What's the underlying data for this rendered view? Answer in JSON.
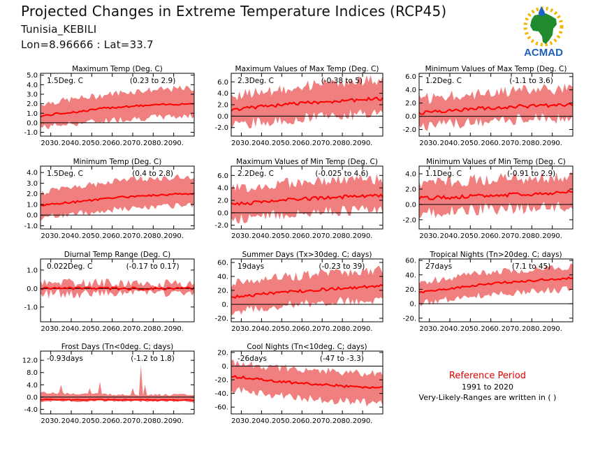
{
  "header": {
    "title": "Projected Changes in Extreme Temperature Indices (RCP45)",
    "location": "Tunisia_KEBILI",
    "coords": "Lon=8.96666 : Lat=33.7"
  },
  "logo": {
    "text": "ACMAD",
    "icon": "africa-map-sun-raindrop-logo"
  },
  "reference": {
    "title": "Reference Period",
    "years": "1991 to 2020",
    "note": "Very-Likely-Ranges are written in ( )"
  },
  "colors": {
    "band": "#f08080",
    "line": "#ff0000",
    "zero": "#000000"
  },
  "chart_data": [
    {
      "type": "area",
      "title": "Maximum Temp (Deg. C)",
      "summary": "1.5Deg. C",
      "range": "(0.23 to 2.9)",
      "ylim": [
        -1.4,
        5.2
      ],
      "yticks": [
        -1,
        0,
        1,
        2,
        3,
        4,
        5
      ],
      "ytick_labels": [
        "-1.0",
        "0.0",
        "1.0",
        "2.0",
        "3.0",
        "4.0",
        "5.0"
      ],
      "x": [
        2025,
        2035,
        2045,
        2055,
        2065,
        2075,
        2085,
        2095,
        2100
      ],
      "median": [
        0.7,
        1.0,
        1.2,
        1.5,
        1.7,
        1.8,
        1.9,
        2.0,
        2.0
      ],
      "lower": [
        -0.5,
        -0.2,
        0.0,
        0.2,
        0.4,
        0.5,
        0.6,
        0.7,
        0.7
      ],
      "upper": [
        2.0,
        2.3,
        2.6,
        2.9,
        3.2,
        3.4,
        3.5,
        3.6,
        3.6
      ],
      "noise": 0.35
    },
    {
      "type": "area",
      "title": "Maximum Values of Max Temp (Deg. C)",
      "summary": "2.3Deg. C",
      "range": "(-0.38 to 5)",
      "ylim": [
        -3.5,
        7.5
      ],
      "yticks": [
        -2,
        0,
        2,
        4,
        6
      ],
      "ytick_labels": [
        "-2.0",
        "0.0",
        "2.0",
        "4.0",
        "6.0"
      ],
      "x": [
        2025,
        2035,
        2045,
        2055,
        2065,
        2075,
        2085,
        2095,
        2100
      ],
      "median": [
        1.0,
        1.5,
        1.8,
        2.1,
        2.4,
        2.6,
        2.8,
        3.0,
        3.0
      ],
      "lower": [
        -1.5,
        -1.2,
        -0.9,
        -0.6,
        -0.3,
        0.0,
        0.2,
        0.4,
        0.4
      ],
      "upper": [
        3.5,
        4.0,
        4.5,
        5.0,
        5.5,
        5.8,
        6.0,
        6.2,
        6.2
      ],
      "noise": 1.0
    },
    {
      "type": "area",
      "title": "Minimum Values of Max Temp (Deg. C)",
      "summary": "1.2Deg. C",
      "range": "(-1.1 to 3.6)",
      "ylim": [
        -3.0,
        6.5
      ],
      "yticks": [
        -2,
        0,
        2,
        4,
        6
      ],
      "ytick_labels": [
        "-2.0",
        "0.0",
        "2.0",
        "4.0",
        "6.0"
      ],
      "x": [
        2025,
        2035,
        2045,
        2055,
        2065,
        2075,
        2085,
        2095,
        2100
      ],
      "median": [
        0.5,
        0.8,
        1.0,
        1.2,
        1.4,
        1.5,
        1.6,
        1.7,
        1.7
      ],
      "lower": [
        -1.5,
        -1.3,
        -1.1,
        -0.9,
        -0.7,
        -0.5,
        -0.4,
        -0.3,
        -0.3
      ],
      "upper": [
        2.5,
        2.9,
        3.2,
        3.5,
        3.7,
        3.9,
        4.0,
        4.1,
        4.1
      ],
      "noise": 0.9
    },
    {
      "type": "area",
      "title": "Minimum Temp (Deg. C)",
      "summary": "1.5Deg. C",
      "range": "(0.4 to 2.8)",
      "ylim": [
        -1.3,
        4.6
      ],
      "yticks": [
        -1,
        0,
        1,
        2,
        3,
        4
      ],
      "ytick_labels": [
        "-1.0",
        "0.0",
        "1.0",
        "2.0",
        "3.0",
        "4.0"
      ],
      "x": [
        2025,
        2035,
        2045,
        2055,
        2065,
        2075,
        2085,
        2095,
        2100
      ],
      "median": [
        0.9,
        1.1,
        1.3,
        1.5,
        1.7,
        1.8,
        1.9,
        2.0,
        2.0
      ],
      "lower": [
        -0.3,
        0.0,
        0.2,
        0.4,
        0.6,
        0.7,
        0.8,
        0.9,
        0.9
      ],
      "upper": [
        2.1,
        2.4,
        2.7,
        3.0,
        3.3,
        3.4,
        3.5,
        3.6,
        3.6
      ],
      "noise": 0.3
    },
    {
      "type": "area",
      "title": "Maximum Values of Min Temp (Deg. C)",
      "summary": "2.2Deg. C",
      "range": "(-0.025 to 4.6)",
      "ylim": [
        -2.6,
        7.5
      ],
      "yticks": [
        -2,
        0,
        2,
        4,
        6
      ],
      "ytick_labels": [
        "-2.0",
        "0.0",
        "2.0",
        "4.0",
        "6.0"
      ],
      "x": [
        2025,
        2035,
        2045,
        2055,
        2065,
        2075,
        2085,
        2095,
        2100
      ],
      "median": [
        1.3,
        1.6,
        1.9,
        2.1,
        2.3,
        2.5,
        2.6,
        2.7,
        2.7
      ],
      "lower": [
        -1.0,
        -0.7,
        -0.4,
        -0.1,
        0.1,
        0.3,
        0.4,
        0.5,
        0.5
      ],
      "upper": [
        3.8,
        4.2,
        4.5,
        4.8,
        5.0,
        5.2,
        5.3,
        5.4,
        5.4
      ],
      "noise": 0.9
    },
    {
      "type": "area",
      "title": "Minimum Values of Min Temp (Deg. C)",
      "summary": "1.1Deg. C",
      "range": "(-0.91 to 2.9)",
      "ylim": [
        -3.2,
        5.0
      ],
      "yticks": [
        -2,
        0,
        2,
        4
      ],
      "ytick_labels": [
        "-2.0",
        "0.0",
        "2.0",
        "4.0"
      ],
      "x": [
        2025,
        2035,
        2045,
        2055,
        2065,
        2075,
        2085,
        2095,
        2100
      ],
      "median": [
        0.8,
        0.9,
        1.0,
        1.1,
        1.2,
        1.3,
        1.4,
        1.6,
        1.6
      ],
      "lower": [
        -1.2,
        -1.0,
        -0.8,
        -0.7,
        -0.6,
        -0.5,
        -0.4,
        -0.3,
        -0.3
      ],
      "upper": [
        2.8,
        3.0,
        3.1,
        3.2,
        3.3,
        3.4,
        3.5,
        3.6,
        3.6
      ],
      "noise": 0.8
    },
    {
      "type": "area",
      "title": "Diurnal Temp Range (Deg. C)",
      "summary": "0.022Deg. C",
      "range": "(-0.17 to 0.17)",
      "ylim": [
        -1.8,
        1.6
      ],
      "yticks": [
        -1,
        0,
        1
      ],
      "ytick_labels": [
        "-1.0",
        "0.0",
        "1.0"
      ],
      "x": [
        2025,
        2035,
        2045,
        2055,
        2065,
        2075,
        2085,
        2095,
        2100
      ],
      "median": [
        0.0,
        0.0,
        0.0,
        0.0,
        0.0,
        0.0,
        0.0,
        0.0,
        0.0
      ],
      "lower": [
        -0.3,
        -0.3,
        -0.3,
        -0.2,
        -0.2,
        -0.2,
        -0.2,
        -0.2,
        -0.2
      ],
      "upper": [
        0.3,
        0.3,
        0.3,
        0.3,
        0.3,
        0.3,
        0.3,
        0.3,
        0.3
      ],
      "noise": 0.25
    },
    {
      "type": "area",
      "title": "Summer Days (Tx>30deg. C; days)",
      "summary": "19days",
      "range": "(-0.23 to 39)",
      "ylim": [
        -25,
        65
      ],
      "yticks": [
        -20,
        0,
        20,
        40,
        60
      ],
      "ytick_labels": [
        "-20.",
        "0.",
        "20.",
        "40.",
        "60."
      ],
      "x": [
        2025,
        2035,
        2045,
        2055,
        2065,
        2075,
        2085,
        2095,
        2100
      ],
      "median": [
        10,
        13,
        16,
        18,
        20,
        22,
        24,
        26,
        27
      ],
      "lower": [
        -10,
        -7,
        -4,
        -1,
        2,
        4,
        5,
        6,
        6
      ],
      "upper": [
        30,
        34,
        37,
        40,
        43,
        45,
        47,
        49,
        49
      ],
      "noise": 7
    },
    {
      "type": "area",
      "title": "Tropical Nights (Tn>20deg. C; days)",
      "summary": "27days",
      "range": "(7.1 to 45)",
      "ylim": [
        -25,
        62
      ],
      "yticks": [
        -20,
        0,
        20,
        40,
        60
      ],
      "ytick_labels": [
        "-20.",
        "0.",
        "20.",
        "40.",
        "60."
      ],
      "x": [
        2025,
        2035,
        2045,
        2055,
        2065,
        2075,
        2085,
        2095,
        2100
      ],
      "median": [
        15,
        19,
        23,
        26,
        29,
        31,
        33,
        35,
        35
      ],
      "lower": [
        0,
        4,
        8,
        11,
        14,
        16,
        18,
        19,
        19
      ],
      "upper": [
        30,
        34,
        38,
        42,
        45,
        47,
        49,
        51,
        51
      ],
      "noise": 5
    },
    {
      "type": "area",
      "title": "Frost Days (Tn<0deg. C; days)",
      "summary": "-0.93days",
      "range": "(-1.2 to 1.8)",
      "ylim": [
        -5.5,
        15
      ],
      "yticks": [
        -4,
        0,
        4,
        8,
        12
      ],
      "ytick_labels": [
        "-4.0",
        "0.0",
        "4.0",
        "8.0",
        "12.0"
      ],
      "x": [
        2025,
        2035,
        2045,
        2055,
        2065,
        2075,
        2085,
        2095,
        2100
      ],
      "median": [
        -0.8,
        -0.9,
        -0.9,
        -0.9,
        -0.9,
        -0.9,
        -1.0,
        -1.0,
        -1.0
      ],
      "lower": [
        -1.3,
        -1.3,
        -1.3,
        -1.3,
        -1.3,
        -1.3,
        -1.3,
        -1.3,
        -1.3
      ],
      "upper": [
        1.5,
        1.2,
        1.0,
        0.9,
        0.8,
        0.8,
        0.7,
        0.7,
        0.7
      ],
      "noise": 0.4,
      "spikes": [
        [
          2035,
          4.0
        ],
        [
          2049,
          3.0
        ],
        [
          2054,
          5.0
        ],
        [
          2074,
          10.5
        ],
        [
          2076,
          4.0
        ],
        [
          2070,
          3.0
        ]
      ]
    },
    {
      "type": "area",
      "title": "Cool Nights (Tn<10deg. C; days)",
      "summary": "-26days",
      "range": "(-47 to -3.3)",
      "ylim": [
        -70,
        22
      ],
      "yticks": [
        -60,
        -40,
        -20,
        0,
        20
      ],
      "ytick_labels": [
        "-60.",
        "-40.",
        "-20.",
        "0.",
        "20."
      ],
      "x": [
        2025,
        2035,
        2045,
        2055,
        2065,
        2075,
        2085,
        2095,
        2100
      ],
      "median": [
        -15,
        -18,
        -21,
        -24,
        -26,
        -28,
        -30,
        -31,
        -31
      ],
      "lower": [
        -35,
        -38,
        -42,
        -45,
        -48,
        -50,
        -52,
        -54,
        -54
      ],
      "upper": [
        5,
        2,
        -1,
        -4,
        -6,
        -8,
        -10,
        -11,
        -11
      ],
      "noise": 6
    }
  ],
  "xaxis": {
    "ticks": [
      2030,
      2040,
      2050,
      2060,
      2070,
      2080,
      2090
    ],
    "tick_labels": [
      "2030.",
      "2040.",
      "2050.",
      "2060.",
      "2070.",
      "2080.",
      "2090."
    ],
    "xlim": [
      2025,
      2100
    ]
  }
}
